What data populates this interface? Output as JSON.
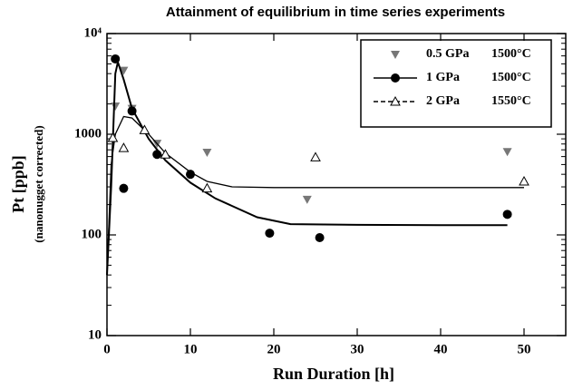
{
  "chart_data": {
    "type": "scatter",
    "title": "Attainment of equilibrium in time series experiments",
    "xlabel": "Run Duration [h]",
    "ylabel": "Pt [ppb]",
    "ylabel_sub": "(nanonugget corrected)",
    "xlim": [
      0,
      55
    ],
    "xticks": [
      0,
      10,
      20,
      30,
      40,
      50
    ],
    "ylim": [
      10,
      10000
    ],
    "ylog": true,
    "yticks": [
      10,
      100,
      1000,
      {
        "value": 10000,
        "label": "10⁴"
      }
    ],
    "legend": "upper right",
    "series": [
      {
        "name": "0.5 GPa",
        "temperature": "1500°C",
        "color": "#777777",
        "marker": "triangle-down",
        "line_style": "none",
        "x": [
          1,
          2,
          3,
          6,
          12,
          24,
          48
        ],
        "values": [
          1900,
          4300,
          1800,
          810,
          660,
          225,
          670
        ]
      },
      {
        "name": "1 GPa",
        "temperature": "1500°C",
        "color": "#000000",
        "marker": "circle",
        "line_style": "solid",
        "x": [
          1,
          2,
          3,
          6,
          10,
          19.5,
          25.5,
          48
        ],
        "values": [
          5600,
          290,
          1700,
          630,
          400,
          104,
          94,
          160
        ],
        "fit_x": [
          0,
          0.5,
          1,
          1.3,
          2,
          3,
          5,
          7,
          10,
          13,
          18,
          22,
          30,
          40,
          48
        ],
        "fit_y": [
          40,
          300,
          4000,
          5200,
          3500,
          1800,
          900,
          550,
          330,
          230,
          150,
          128,
          126,
          125,
          125
        ]
      },
      {
        "name": "2 GPa",
        "temperature": "1550°C",
        "color": "#000000",
        "marker": "triangle-open",
        "line_style": "dashed",
        "x": [
          0.7,
          2,
          4.5,
          7,
          12,
          25,
          50
        ],
        "values": [
          920,
          730,
          1100,
          630,
          290,
          590,
          340
        ],
        "fit_x": [
          0,
          0.5,
          1,
          2,
          3,
          5,
          7,
          10,
          12,
          15,
          20,
          30,
          40,
          50
        ],
        "fit_y": [
          40,
          500,
          1000,
          1500,
          1450,
          1000,
          650,
          420,
          340,
          300,
          295,
          295,
          295,
          295
        ]
      }
    ]
  }
}
